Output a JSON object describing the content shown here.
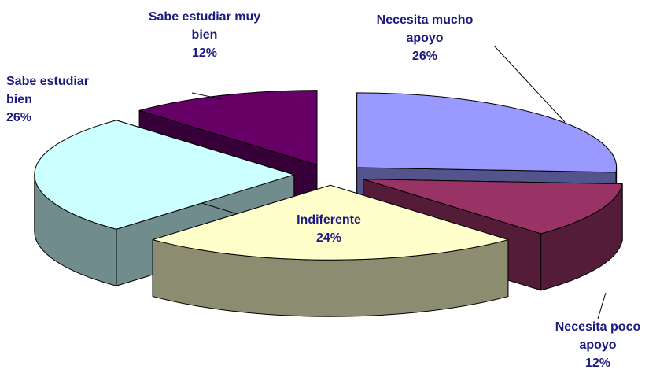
{
  "chart_data": {
    "type": "pie",
    "categories": [
      "Necesita mucho apoyo",
      "Necesita poco apoyo",
      "Indiferente",
      "Sabe estudiar bien",
      "Sabe estudiar muy bien"
    ],
    "values": [
      26,
      12,
      24,
      26,
      12
    ],
    "value_labels": [
      "26%",
      "12%",
      "24%",
      "26%",
      "12%"
    ],
    "colors": [
      "#9999ff",
      "#993366",
      "#ffffcc",
      "#ccffff",
      "#660066"
    ]
  }
}
